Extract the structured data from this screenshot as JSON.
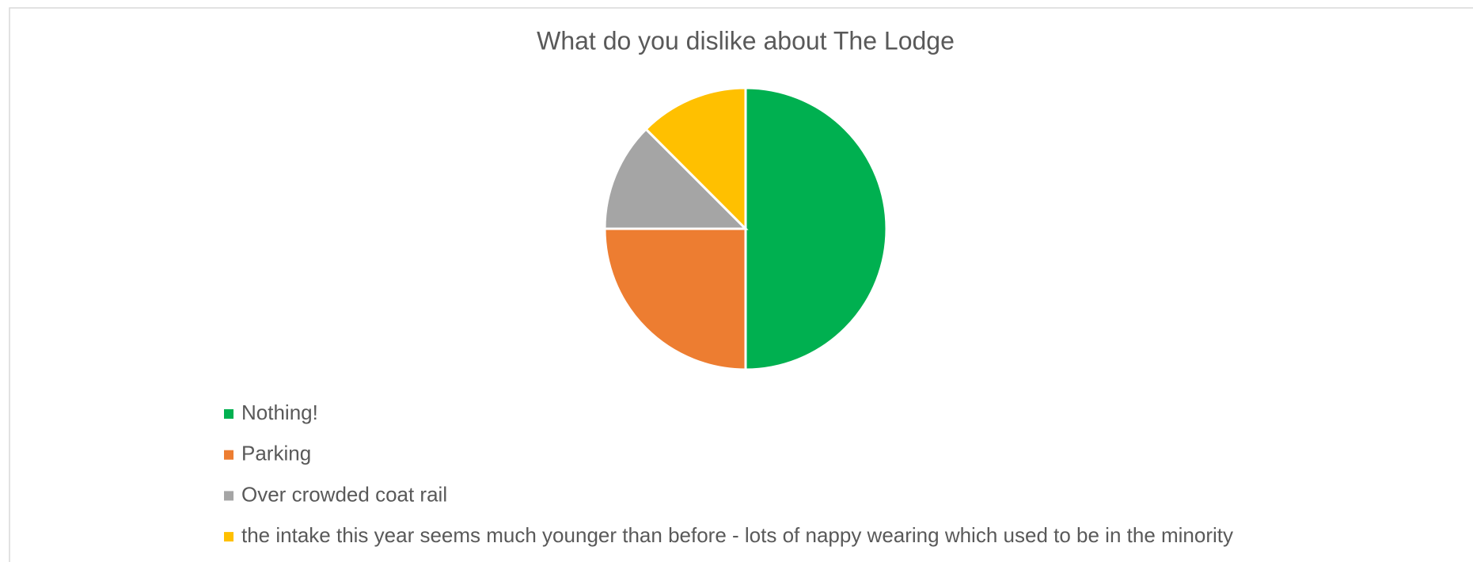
{
  "chart_data": {
    "type": "pie",
    "title": "What do you dislike about The Lodge",
    "categories": [
      "Nothing!",
      "Parking",
      "Over crowded coat rail",
      "the intake this year seems much younger than before - lots of nappy wearing which used to be in the minority"
    ],
    "values": [
      50,
      25,
      12.5,
      12.5
    ],
    "colors": [
      "#00b050",
      "#ed7d31",
      "#a5a5a5",
      "#ffc000"
    ],
    "legend": "bottom-left"
  }
}
